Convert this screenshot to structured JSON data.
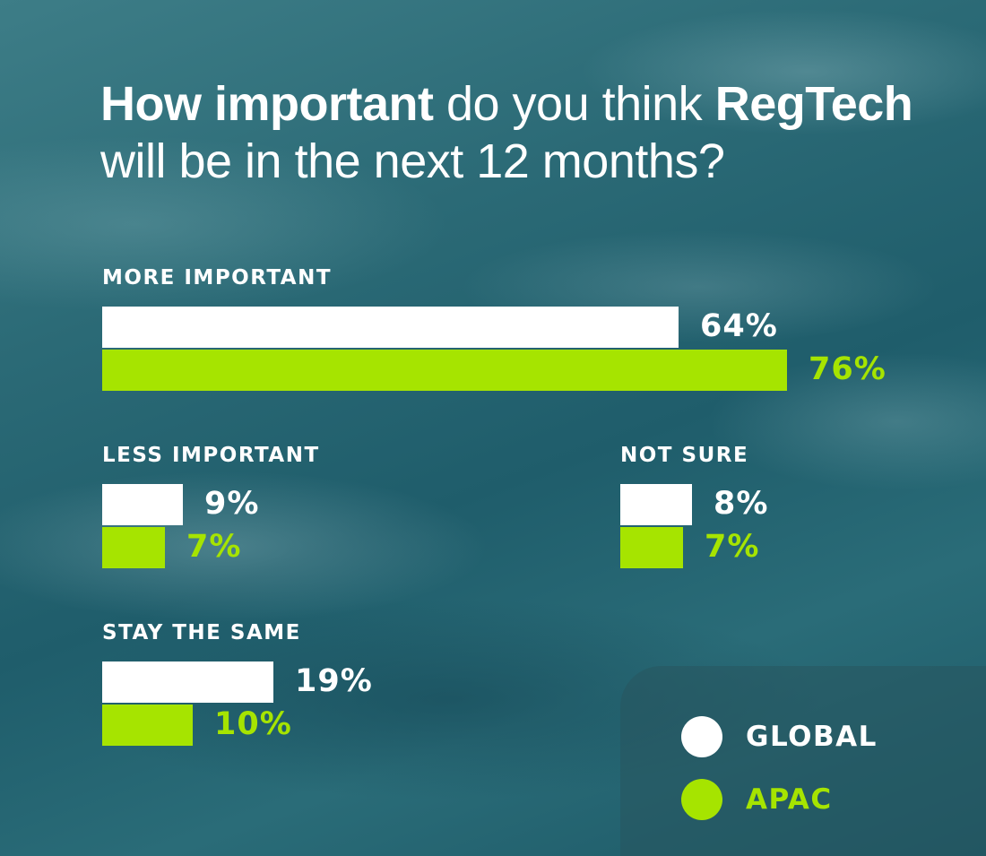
{
  "colors": {
    "global": "#ffffff",
    "apac": "#a6e400"
  },
  "chart_data": {
    "type": "bar",
    "orientation": "horizontal",
    "title_parts": [
      {
        "text": "How important",
        "bold": true
      },
      {
        "text": " do you think ",
        "bold": false
      },
      {
        "text": "RegTech",
        "bold": true
      },
      {
        "text": "will be in the next 12 months?",
        "bold": false,
        "newline": true
      }
    ],
    "categories": [
      "MORE IMPORTANT",
      "LESS IMPORTANT",
      "NOT SURE",
      "STAY THE SAME"
    ],
    "series": [
      {
        "name": "GLOBAL",
        "values": [
          64,
          9,
          8,
          19
        ],
        "labels": [
          "64%",
          "9%",
          "8%",
          "19%"
        ]
      },
      {
        "name": "APAC",
        "values": [
          76,
          7,
          7,
          10
        ],
        "labels": [
          "76%",
          "7%",
          "7%",
          "10%"
        ]
      }
    ],
    "unit": "%",
    "grid": false,
    "legend": {
      "placement": "bottom-right",
      "items": [
        "GLOBAL",
        "APAC"
      ]
    }
  }
}
